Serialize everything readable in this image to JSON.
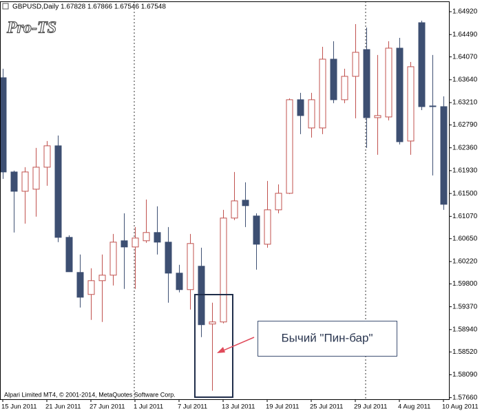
{
  "chart_data": {
    "type": "candlestick",
    "title": "GBPUSD,Daily",
    "subtitle": "1.67828 1.67866 1.67546 1.67548",
    "watermark": "Pro-TS",
    "footer": "Alpari Limited MT4, © 2001-2014, MetaQuotes Software Corp.",
    "annotation": "Бычий \"Пин-бар\"",
    "up_color": "#c0504d",
    "down_color": "#3d4f72",
    "categories": [
      "15 Jun 2011",
      null,
      null,
      null,
      "21 Jun 2011",
      null,
      null,
      null,
      "27 Jun 2011",
      null,
      null,
      null,
      "1 Jul 2011",
      null,
      null,
      null,
      "7 Jul 2011",
      null,
      null,
      null,
      "13 Jul 2011",
      null,
      null,
      null,
      "19 Jul 2011",
      null,
      null,
      null,
      "25 Jul 2011",
      null,
      null,
      null,
      "29 Jul 2011",
      null,
      null,
      null,
      "4 Aug 2011",
      null,
      null,
      null,
      "10 Aug 2011"
    ],
    "open": [
      1.63678,
      1.61905,
      1.61542,
      1.61581,
      1.61995,
      1.62397,
      1.60675,
      1.60015,
      1.59601,
      1.5986,
      1.59964,
      1.60611,
      1.60494,
      1.60611,
      1.60766,
      1.60585,
      1.60002,
      1.59692,
      1.60132,
      1.59045,
      1.59084,
      1.61038,
      1.61374,
      1.61077,
      1.60546,
      1.61193,
      1.61504,
      1.63264,
      1.62733,
      1.62733,
      1.64027,
      1.63264,
      1.63704,
      1.64208,
      1.62927,
      1.6294,
      1.64234,
      1.62487,
      1.64713,
      1.63147,
      1.63134
    ],
    "high": [
      1.63846,
      1.61931,
      1.61995,
      1.62358,
      1.62487,
      1.62591,
      1.60714,
      1.60352,
      1.60093,
      1.60352,
      1.6074,
      1.61128,
      1.60869,
      1.61387,
      1.61258,
      1.60869,
      1.60158,
      1.6074,
      1.60481,
      1.59446,
      1.61193,
      1.61905,
      1.61711,
      1.61128,
      1.61737,
      1.61672,
      1.63289,
      1.63393,
      1.63393,
      1.6426,
      1.64364,
      1.63846,
      1.64687,
      1.64622,
      1.64105,
      1.64364,
      1.64428,
      1.63975,
      1.64752,
      1.64105,
      1.63328
    ],
    "low": [
      1.61775,
      1.60766,
      1.60934,
      1.61064,
      1.61646,
      1.60585,
      1.60028,
      1.59355,
      1.59122,
      1.59084,
      1.59769,
      1.59705,
      1.59705,
      1.60572,
      1.60352,
      1.59446,
      1.5964,
      1.59316,
      1.58799,
      1.5779,
      1.59058,
      1.60999,
      1.60869,
      1.60067,
      1.60481,
      1.61128,
      1.61491,
      1.62617,
      1.62552,
      1.62617,
      1.63199,
      1.63199,
      1.62914,
      1.62358,
      1.62228,
      1.62875,
      1.62422,
      1.62228,
      1.63069,
      1.6184,
      1.61193
    ],
    "close": [
      1.61905,
      1.61542,
      1.61905,
      1.61995,
      1.62397,
      1.60675,
      1.60028,
      1.59549,
      1.5986,
      1.59964,
      1.60585,
      1.60494,
      1.60662,
      1.60766,
      1.60585,
      1.60002,
      1.59692,
      1.60559,
      1.59032,
      1.59084,
      1.61038,
      1.61361,
      1.61271,
      1.60546,
      1.61193,
      1.61504,
      1.63264,
      1.62966,
      1.63264,
      1.64027,
      1.63264,
      1.63704,
      1.64156,
      1.62927,
      1.62966,
      1.64234,
      1.62474,
      1.63885,
      1.63134,
      1.63134,
      1.61297
    ],
    "ylim": [
      1.5763,
      1.6514
    ],
    "yticks": [
      {
        "value": 1.6492,
        "label": "1.64920"
      },
      {
        "value": 1.6449,
        "label": "1.64490"
      },
      {
        "value": 1.6407,
        "label": "1.64070"
      },
      {
        "value": 1.6364,
        "label": "1.63640"
      },
      {
        "value": 1.6321,
        "label": "1.63210"
      },
      {
        "value": 1.6279,
        "label": "1.62790"
      },
      {
        "value": 1.6236,
        "label": "1.62360"
      },
      {
        "value": 1.6193,
        "label": "1.61930"
      },
      {
        "value": 1.615,
        "label": "1.61500"
      },
      {
        "value": 1.6107,
        "label": "1.61070"
      },
      {
        "value": 1.6065,
        "label": "1.60650"
      },
      {
        "value": 1.6022,
        "label": "1.60220"
      },
      {
        "value": 1.598,
        "label": "1.59800"
      },
      {
        "value": 1.5937,
        "label": "1.59370"
      },
      {
        "value": 1.5894,
        "label": "1.58940"
      },
      {
        "value": 1.5852,
        "label": "1.58520"
      },
      {
        "value": 1.5809,
        "label": "1.58090"
      },
      {
        "value": 1.5766,
        "label": "1.57660"
      }
    ]
  }
}
